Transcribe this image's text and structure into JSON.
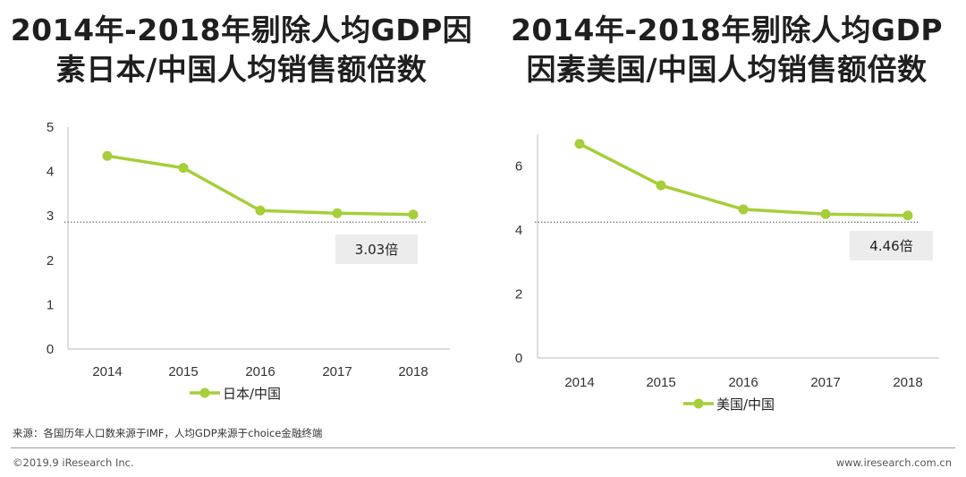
{
  "colors": {
    "line": "#a6ce39",
    "axis": "#c8c8c8",
    "callout_bg": "#ececec",
    "dotted": "#555555"
  },
  "chart_data": [
    {
      "type": "line",
      "title": "2014年-2018年剔除人均GDP因素日本/中国人均销售额倍数",
      "categories": [
        "2014",
        "2015",
        "2016",
        "2017",
        "2018"
      ],
      "series": [
        {
          "name": "日本/中国",
          "values": [
            4.35,
            4.08,
            3.12,
            3.06,
            3.03
          ]
        }
      ],
      "ylim": [
        0,
        5
      ],
      "yticks": [
        "0",
        "1",
        "2",
        "3",
        "4",
        "5"
      ],
      "reference_line": 2.86,
      "annotation": "3.03倍",
      "xlabel": "",
      "ylabel": "",
      "legend": "bottom"
    },
    {
      "type": "line",
      "title": "2014年-2018年剔除人均GDP因素美国/中国人均销售额倍数",
      "categories": [
        "2014",
        "2015",
        "2016",
        "2017",
        "2018"
      ],
      "series": [
        {
          "name": "美国/中国",
          "values": [
            6.7,
            5.4,
            4.65,
            4.5,
            4.46
          ]
        }
      ],
      "ylim": [
        0,
        7
      ],
      "yticks": [
        "0",
        "2",
        "4",
        "6"
      ],
      "reference_line": 4.25,
      "annotation": "4.46倍",
      "xlabel": "",
      "ylabel": "",
      "legend": "bottom"
    }
  ],
  "titles": {
    "left_line1": "2014年-2018年剔除人均GDP因",
    "left_line2": "素日本/中国人均销售额倍数",
    "right_line1": "2014年-2018年剔除人均GDP",
    "right_line2": "因素美国/中国人均销售额倍数"
  },
  "footer": {
    "source": "来源：各国历年人口数来源于IMF，人均GDP来源于choice金融终端",
    "copyright": "©2019.9 iResearch Inc.",
    "website": "www.iresearch.com.cn"
  }
}
